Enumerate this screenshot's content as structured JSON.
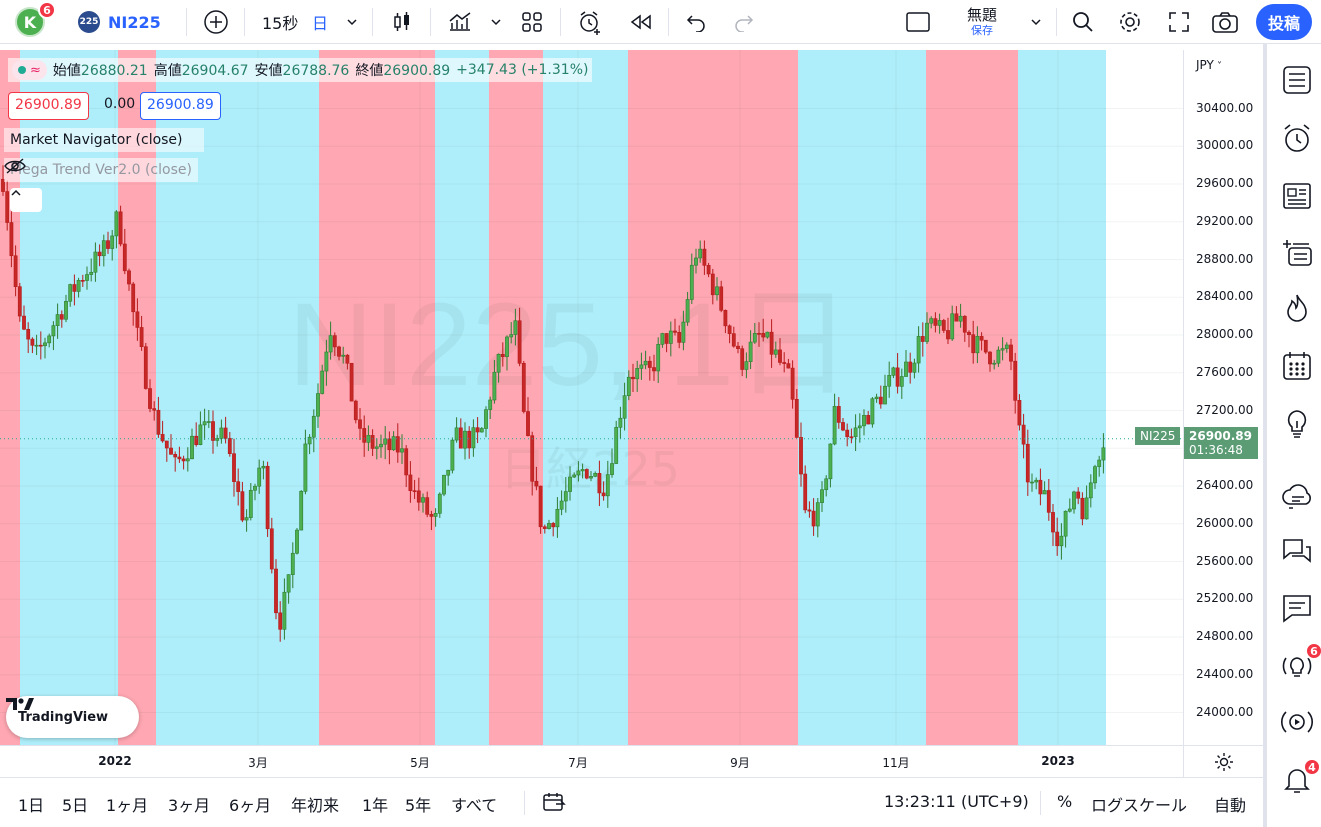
{
  "topbar": {
    "avatar_letter": "K",
    "avatar_badge": "6",
    "symbol_logo": "225",
    "symbol": "NI225",
    "interval": "15秒",
    "timeframe": "日",
    "layout_name": "無題",
    "layout_sub": "保存",
    "post_label": "投稿",
    "icons": [
      "add-symbol-icon",
      "chevron-down-icon",
      "candles-icon",
      "indicators-icon",
      "chevron-down-icon",
      "layout-grid-icon",
      "alert-icon",
      "replay-icon",
      "undo-icon",
      "redo-icon",
      "layout-box-icon",
      "chevron-down-icon",
      "search-icon",
      "gear-icon",
      "fullscreen-icon",
      "camera-icon"
    ]
  },
  "legend": {
    "o_label": "始値",
    "o_val": "26880.21",
    "h_label": "高値",
    "h_val": "26904.67",
    "l_label": "安値",
    "l_val": "26788.76",
    "c_label": "終値",
    "c_val": "26900.89",
    "change": "+347.43 (+1.31%)",
    "bid": "26900.89",
    "spread": "0.00",
    "ask": "26900.89",
    "indicator1": "Market Navigator (close)",
    "indicator2": "Mega Trend Ver2.0 (close)"
  },
  "watermark": {
    "main": "NI225, 1日",
    "sub": "日経225"
  },
  "price_axis": {
    "currency": "JPY",
    "labels": [
      "30400.00",
      "30000.00",
      "29600.00",
      "29200.00",
      "28800.00",
      "28400.00",
      "28000.00",
      "27600.00",
      "27200.00",
      "26400.00",
      "26000.00",
      "25600.00",
      "25200.00",
      "24800.00",
      "24400.00",
      "24000.00"
    ],
    "current_symbol": "NI225",
    "current_price": "26900.89",
    "countdown": "01:36:48"
  },
  "time_axis": {
    "labels": [
      "2022",
      "3月",
      "5月",
      "7月",
      "9月",
      "11月",
      "2023"
    ]
  },
  "bottombar": {
    "ranges": [
      "1日",
      "5日",
      "1ヶ月",
      "3ヶ月",
      "6ヶ月",
      "年初来",
      "1年",
      "5年",
      "すべて"
    ],
    "clock": "13:23:11 (UTC+9)",
    "percent": "%",
    "log": "ログスケール",
    "auto": "自動"
  },
  "rightbar": {
    "icons": [
      "watchlist-icon",
      "alarm-icon",
      "news-icon",
      "add-list-icon",
      "hotlist-icon",
      "calendar-icon",
      "ideas-icon",
      "chat-cloud-icon",
      "chats-icon",
      "messages-icon",
      "streams-icon",
      "live-icon",
      "notification-icon"
    ],
    "ideas_badge": "6",
    "notif_badge": "4"
  },
  "logo_text": "TradingView",
  "colors": {
    "bull": "#22ab94",
    "bear": "#f23645",
    "zone_red": "#ffa7b2",
    "zone_blue": "#aeeefa",
    "accent": "#2962ff"
  }
}
